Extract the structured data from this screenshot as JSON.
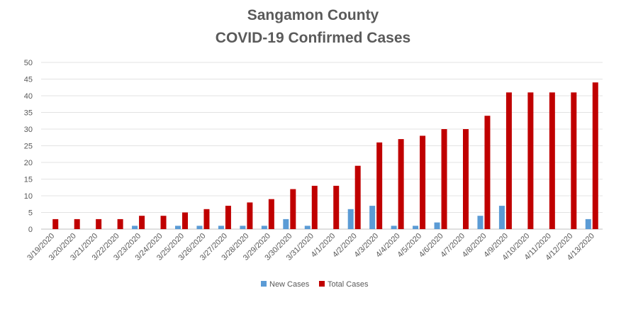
{
  "chart_data": {
    "type": "bar",
    "title": "Sangamon County",
    "subtitle": "COVID-19 Confirmed Cases",
    "categories": [
      "3/19/2020",
      "3/20/2020",
      "3/21/2020",
      "3/22/2020",
      "3/23/2020",
      "3/24/2020",
      "3/25/2020",
      "3/26/2020",
      "3/27/2020",
      "3/28/2020",
      "3/29/2020",
      "3/30/2020",
      "3/31/2020",
      "4/1/2020",
      "4/2/2020",
      "4/3/2020",
      "4/4/2020",
      "4/5/2020",
      "4/6/2020",
      "4/7/2020",
      "4/8/2020",
      "4/9/2020",
      "4/10/2020",
      "4/11/2020",
      "4/12/2020",
      "4/13/2020"
    ],
    "series": [
      {
        "name": "New Cases",
        "color": "#5b9bd5",
        "values": [
          0,
          0,
          0,
          0,
          1,
          0,
          1,
          1,
          1,
          1,
          1,
          3,
          1,
          0,
          6,
          7,
          1,
          1,
          2,
          0,
          4,
          7,
          0,
          0,
          0,
          3
        ]
      },
      {
        "name": "Total Cases",
        "color": "#c00000",
        "values": [
          3,
          3,
          3,
          3,
          4,
          4,
          5,
          6,
          7,
          8,
          9,
          12,
          13,
          13,
          19,
          26,
          27,
          28,
          30,
          30,
          34,
          41,
          41,
          41,
          41,
          44
        ]
      }
    ],
    "ylim": [
      0,
      50
    ],
    "yticks": [
      0,
      5,
      10,
      15,
      20,
      25,
      30,
      35,
      40,
      45,
      50
    ],
    "grid": true,
    "legend": "bottom"
  }
}
